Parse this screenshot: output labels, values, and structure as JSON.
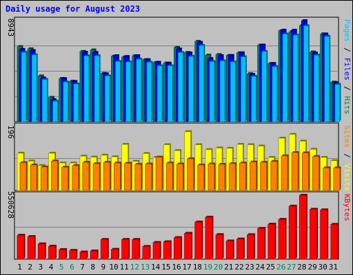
{
  "chart_data": {
    "type": "bar",
    "title": "Daily usage for August 2023",
    "categories": [
      "1",
      "2",
      "3",
      "4",
      "5",
      "6",
      "7",
      "8",
      "9",
      "10",
      "11",
      "12",
      "13",
      "14",
      "15",
      "16",
      "17",
      "18",
      "19",
      "20",
      "21",
      "22",
      "23",
      "24",
      "25",
      "26",
      "27",
      "28",
      "29",
      "30",
      "31"
    ],
    "weekend_days": [
      "5",
      "6",
      "12",
      "13",
      "19",
      "20",
      "26",
      "27"
    ],
    "panels": [
      {
        "name": "hits-files-pages",
        "max_label": "8943",
        "ylim": [
          0,
          8943
        ],
        "series": [
          {
            "name": "Hits",
            "color": "#00805c",
            "values": [
              6650,
              6450,
              4050,
              2150,
              3830,
              3580,
              6220,
              6350,
              4280,
              5800,
              5730,
              5840,
              5490,
              5240,
              5200,
              6570,
              6130,
              7110,
              5890,
              5940,
              5860,
              6100,
              4250,
              6780,
              5150,
              8050,
              7950,
              8510,
              6170,
              7770,
              3500
            ]
          },
          {
            "name": "Files",
            "color": "#0000ff",
            "values": [
              6400,
              6290,
              3870,
              1950,
              3810,
              3560,
              6140,
              6130,
              4240,
              5840,
              5770,
              5840,
              5490,
              5260,
              5180,
              6430,
              6080,
              7020,
              5590,
              5840,
              5860,
              6100,
              4180,
              6780,
              5150,
              8100,
              8100,
              8943,
              6080,
              7760,
              3450
            ]
          },
          {
            "name": "Pages",
            "color": "#00c0ff",
            "values": [
              6140,
              5920,
              3740,
              1810,
              3510,
              3330,
              5820,
              5830,
              4050,
              5330,
              5290,
              5530,
              5260,
              4940,
              4950,
              6120,
              5780,
              6740,
              5320,
              5380,
              5290,
              5740,
              4010,
              6210,
              4880,
              7760,
              7660,
              8490,
              5890,
              7550,
              3300
            ]
          }
        ]
      },
      {
        "name": "visits-sites",
        "max_label": "196",
        "ylim": [
          0,
          196
        ],
        "series": [
          {
            "name": "Visits",
            "color": "#ffff00",
            "values": [
              114,
              90,
              76,
              114,
              84,
              84,
              105,
              102,
              108,
              103,
              141,
              89,
              113,
              101,
              140,
              122,
              180,
              140,
              125,
              130,
              129,
              141,
              140,
              136,
              101,
              160,
              172,
              151,
              126,
              101,
              91
            ]
          },
          {
            "name": "Sites",
            "color": "#ff8000",
            "values": [
              85,
              78,
              72,
              90,
              71,
              76,
              86,
              82,
              86,
              84,
              83,
              80,
              81,
              102,
              84,
              81,
              97,
              78,
              81,
              80,
              82,
              84,
              87,
              86,
              89,
              106,
              116,
              115,
              104,
              69,
              69
            ]
          }
        ]
      },
      {
        "name": "kbytes",
        "max_label": "550628",
        "ylim": [
          0,
          550628
        ],
        "series": [
          {
            "name": "KBytes",
            "color": "#ff0000",
            "values": [
              206000,
              195000,
              132000,
              112000,
              83000,
              76000,
              62000,
              71000,
              170000,
              85000,
              170000,
              170000,
              110000,
              144000,
              150000,
              186000,
              223000,
              320000,
              362000,
              212000,
              157000,
              174000,
              211000,
              265000,
              302000,
              343000,
              457000,
              550628,
              430000,
              425000,
              300000
            ]
          }
        ]
      }
    ]
  }
}
